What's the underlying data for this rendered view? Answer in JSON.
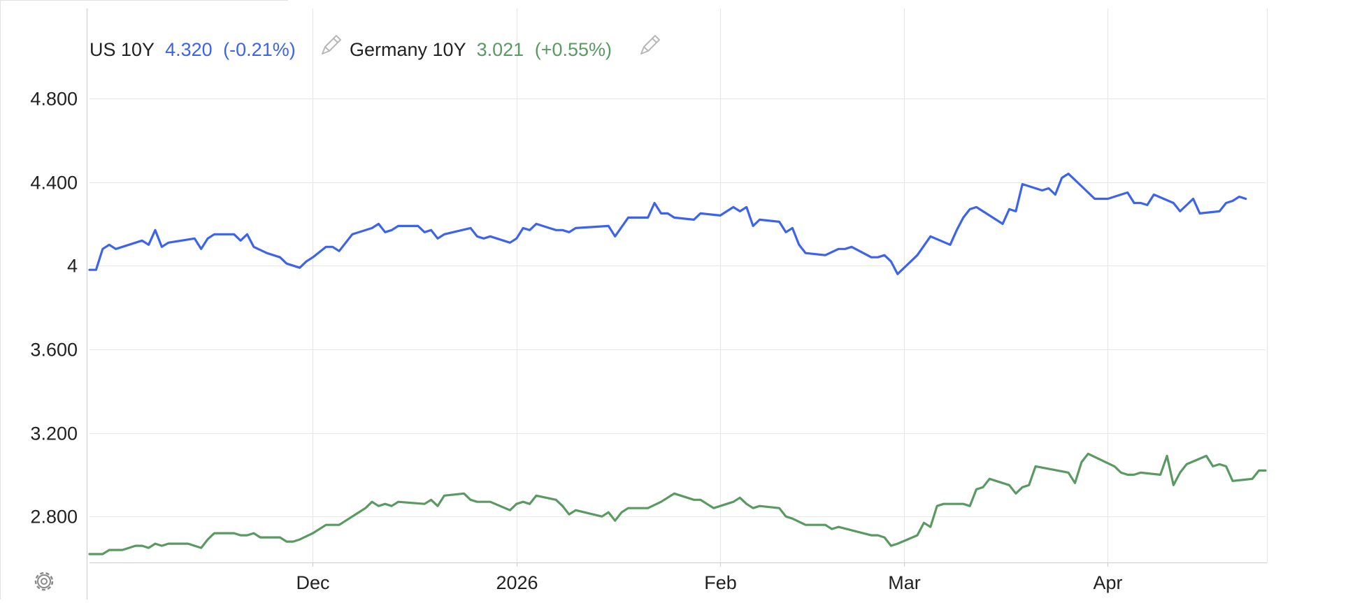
{
  "legend": [
    {
      "name": "US 10Y",
      "value": "4.320",
      "change": "(-0.21%)",
      "icon": "pencil-icon"
    },
    {
      "name": "Germany 10Y",
      "value": "3.021",
      "change": "(+0.55%)",
      "icon": "pencil-icon"
    }
  ],
  "controls": {
    "settings_icon": "gear-icon"
  },
  "colors": {
    "us": "#3d63ee",
    "germany": "#5a9a62",
    "grid": "#e6e6e6",
    "axis": "#cccccc",
    "text": "#222222",
    "icon": "#b8b8b8"
  },
  "chart_data": {
    "type": "line",
    "x_type": "date",
    "xlim": [
      "2025-10-28",
      "2026-04-25"
    ],
    "ylim": [
      2.58,
      4.95
    ],
    "y_ticks": [
      2.8,
      3.2,
      3.6,
      4.0,
      4.4,
      4.8
    ],
    "y_tick_labels": [
      "2.800",
      "3.200",
      "3.600",
      "4",
      "4.400",
      "4.800"
    ],
    "x_ticks": [
      {
        "date": "2025-12-01",
        "label": "Dec"
      },
      {
        "date": "2026-01-01",
        "label": "2026"
      },
      {
        "date": "2026-02-01",
        "label": "Feb"
      },
      {
        "date": "2026-03-01",
        "label": "Mar"
      },
      {
        "date": "2026-04-01",
        "label": "Apr"
      }
    ],
    "grid": true,
    "legend_position": "top-left",
    "series": [
      {
        "name": "US 10Y",
        "points": [
          [
            "2025-10-28",
            3.98
          ],
          [
            "2025-10-29",
            3.98
          ],
          [
            "2025-10-30",
            4.08
          ],
          [
            "2025-10-31",
            4.1
          ],
          [
            "2025-11-01",
            4.08
          ],
          [
            "2025-11-03",
            4.1
          ],
          [
            "2025-11-04",
            4.11
          ],
          [
            "2025-11-05",
            4.12
          ],
          [
            "2025-11-06",
            4.1
          ],
          [
            "2025-11-07",
            4.17
          ],
          [
            "2025-11-08",
            4.09
          ],
          [
            "2025-11-09",
            4.11
          ],
          [
            "2025-11-11",
            4.12
          ],
          [
            "2025-11-13",
            4.13
          ],
          [
            "2025-11-14",
            4.08
          ],
          [
            "2025-11-15",
            4.13
          ],
          [
            "2025-11-16",
            4.15
          ],
          [
            "2025-11-19",
            4.15
          ],
          [
            "2025-11-20",
            4.12
          ],
          [
            "2025-11-21",
            4.15
          ],
          [
            "2025-11-22",
            4.09
          ],
          [
            "2025-11-24",
            4.06
          ],
          [
            "2025-11-26",
            4.04
          ],
          [
            "2025-11-27",
            4.01
          ],
          [
            "2025-11-28",
            4.0
          ],
          [
            "2025-11-29",
            3.99
          ],
          [
            "2025-11-30",
            4.02
          ],
          [
            "2025-12-01",
            4.04
          ],
          [
            "2025-12-03",
            4.09
          ],
          [
            "2025-12-04",
            4.09
          ],
          [
            "2025-12-05",
            4.07
          ],
          [
            "2025-12-07",
            4.15
          ],
          [
            "2025-12-10",
            4.18
          ],
          [
            "2025-12-11",
            4.2
          ],
          [
            "2025-12-12",
            4.16
          ],
          [
            "2025-12-13",
            4.17
          ],
          [
            "2025-12-14",
            4.19
          ],
          [
            "2025-12-17",
            4.19
          ],
          [
            "2025-12-18",
            4.16
          ],
          [
            "2025-12-19",
            4.17
          ],
          [
            "2025-12-20",
            4.13
          ],
          [
            "2025-12-21",
            4.15
          ],
          [
            "2025-12-25",
            4.18
          ],
          [
            "2025-12-26",
            4.14
          ],
          [
            "2025-12-27",
            4.13
          ],
          [
            "2025-12-28",
            4.14
          ],
          [
            "2025-12-31",
            4.11
          ],
          [
            "2026-01-01",
            4.13
          ],
          [
            "2026-01-02",
            4.18
          ],
          [
            "2026-01-03",
            4.17
          ],
          [
            "2026-01-04",
            4.2
          ],
          [
            "2026-01-06",
            4.18
          ],
          [
            "2026-01-07",
            4.17
          ],
          [
            "2026-01-08",
            4.17
          ],
          [
            "2026-01-09",
            4.16
          ],
          [
            "2026-01-10",
            4.18
          ],
          [
            "2026-01-15",
            4.19
          ],
          [
            "2026-01-16",
            4.14
          ],
          [
            "2026-01-18",
            4.23
          ],
          [
            "2026-01-21",
            4.23
          ],
          [
            "2026-01-22",
            4.3
          ],
          [
            "2026-01-23",
            4.25
          ],
          [
            "2026-01-24",
            4.25
          ],
          [
            "2026-01-25",
            4.23
          ],
          [
            "2026-01-28",
            4.22
          ],
          [
            "2026-01-29",
            4.25
          ],
          [
            "2026-02-01",
            4.24
          ],
          [
            "2026-02-02",
            4.26
          ],
          [
            "2026-02-03",
            4.28
          ],
          [
            "2026-02-04",
            4.26
          ],
          [
            "2026-02-05",
            4.28
          ],
          [
            "2026-02-06",
            4.19
          ],
          [
            "2026-02-07",
            4.22
          ],
          [
            "2026-02-10",
            4.21
          ],
          [
            "2026-02-11",
            4.16
          ],
          [
            "2026-02-12",
            4.18
          ],
          [
            "2026-02-13",
            4.1
          ],
          [
            "2026-02-14",
            4.06
          ],
          [
            "2026-02-17",
            4.05
          ],
          [
            "2026-02-19",
            4.08
          ],
          [
            "2026-02-20",
            4.08
          ],
          [
            "2026-02-21",
            4.09
          ],
          [
            "2026-02-24",
            4.04
          ],
          [
            "2026-02-25",
            4.04
          ],
          [
            "2026-02-26",
            4.05
          ],
          [
            "2026-02-27",
            4.02
          ],
          [
            "2026-02-28",
            3.96
          ],
          [
            "2026-03-03",
            4.05
          ],
          [
            "2026-03-05",
            4.14
          ],
          [
            "2026-03-08",
            4.1
          ],
          [
            "2026-03-09",
            4.17
          ],
          [
            "2026-03-10",
            4.23
          ],
          [
            "2026-03-11",
            4.27
          ],
          [
            "2026-03-12",
            4.28
          ],
          [
            "2026-03-16",
            4.2
          ],
          [
            "2026-03-17",
            4.27
          ],
          [
            "2026-03-18",
            4.26
          ],
          [
            "2026-03-19",
            4.39
          ],
          [
            "2026-03-21",
            4.37
          ],
          [
            "2026-03-22",
            4.36
          ],
          [
            "2026-03-23",
            4.37
          ],
          [
            "2026-03-24",
            4.34
          ],
          [
            "2026-03-25",
            4.42
          ],
          [
            "2026-03-26",
            4.44
          ],
          [
            "2026-03-28",
            4.38
          ],
          [
            "2026-03-29",
            4.35
          ],
          [
            "2026-03-30",
            4.32
          ],
          [
            "2026-04-01",
            4.32
          ],
          [
            "2026-04-02",
            4.33
          ],
          [
            "2026-04-03",
            4.34
          ],
          [
            "2026-04-04",
            4.35
          ],
          [
            "2026-04-05",
            4.3
          ],
          [
            "2026-04-06",
            4.3
          ],
          [
            "2026-04-07",
            4.29
          ],
          [
            "2026-04-08",
            4.34
          ],
          [
            "2026-04-11",
            4.3
          ],
          [
            "2026-04-12",
            4.26
          ],
          [
            "2026-04-14",
            4.32
          ],
          [
            "2026-04-15",
            4.25
          ],
          [
            "2026-04-18",
            4.26
          ],
          [
            "2026-04-19",
            4.3
          ],
          [
            "2026-04-20",
            4.31
          ],
          [
            "2026-04-21",
            4.33
          ],
          [
            "2026-04-22",
            4.32
          ]
        ]
      },
      {
        "name": "Germany 10Y",
        "points": [
          [
            "2025-10-28",
            2.62
          ],
          [
            "2025-10-29",
            2.62
          ],
          [
            "2025-10-30",
            2.62
          ],
          [
            "2025-10-31",
            2.64
          ],
          [
            "2025-11-01",
            2.64
          ],
          [
            "2025-11-02",
            2.64
          ],
          [
            "2025-11-04",
            2.66
          ],
          [
            "2025-11-05",
            2.66
          ],
          [
            "2025-11-06",
            2.65
          ],
          [
            "2025-11-07",
            2.67
          ],
          [
            "2025-11-08",
            2.66
          ],
          [
            "2025-11-09",
            2.67
          ],
          [
            "2025-11-12",
            2.67
          ],
          [
            "2025-11-13",
            2.66
          ],
          [
            "2025-11-14",
            2.65
          ],
          [
            "2025-11-15",
            2.69
          ],
          [
            "2025-11-16",
            2.72
          ],
          [
            "2025-11-19",
            2.72
          ],
          [
            "2025-11-20",
            2.71
          ],
          [
            "2025-11-21",
            2.71
          ],
          [
            "2025-11-22",
            2.72
          ],
          [
            "2025-11-23",
            2.7
          ],
          [
            "2025-11-26",
            2.7
          ],
          [
            "2025-11-27",
            2.68
          ],
          [
            "2025-11-28",
            2.68
          ],
          [
            "2025-11-29",
            2.69
          ],
          [
            "2025-12-01",
            2.72
          ],
          [
            "2025-12-03",
            2.76
          ],
          [
            "2025-12-05",
            2.76
          ],
          [
            "2025-12-07",
            2.8
          ],
          [
            "2025-12-09",
            2.84
          ],
          [
            "2025-12-10",
            2.87
          ],
          [
            "2025-12-11",
            2.85
          ],
          [
            "2025-12-12",
            2.86
          ],
          [
            "2025-12-13",
            2.85
          ],
          [
            "2025-12-14",
            2.87
          ],
          [
            "2025-12-18",
            2.86
          ],
          [
            "2025-12-19",
            2.88
          ],
          [
            "2025-12-20",
            2.85
          ],
          [
            "2025-12-21",
            2.9
          ],
          [
            "2025-12-24",
            2.91
          ],
          [
            "2025-12-25",
            2.88
          ],
          [
            "2025-12-26",
            2.87
          ],
          [
            "2025-12-28",
            2.87
          ],
          [
            "2025-12-31",
            2.83
          ],
          [
            "2026-01-01",
            2.86
          ],
          [
            "2026-01-02",
            2.87
          ],
          [
            "2026-01-03",
            2.86
          ],
          [
            "2026-01-04",
            2.9
          ],
          [
            "2026-01-07",
            2.88
          ],
          [
            "2026-01-08",
            2.85
          ],
          [
            "2026-01-09",
            2.81
          ],
          [
            "2026-01-10",
            2.83
          ],
          [
            "2026-01-14",
            2.8
          ],
          [
            "2026-01-15",
            2.82
          ],
          [
            "2026-01-16",
            2.78
          ],
          [
            "2026-01-17",
            2.82
          ],
          [
            "2026-01-18",
            2.84
          ],
          [
            "2026-01-21",
            2.84
          ],
          [
            "2026-01-23",
            2.87
          ],
          [
            "2026-01-24",
            2.89
          ],
          [
            "2026-01-25",
            2.91
          ],
          [
            "2026-01-28",
            2.88
          ],
          [
            "2026-01-29",
            2.88
          ],
          [
            "2026-01-31",
            2.84
          ],
          [
            "2026-02-01",
            2.85
          ],
          [
            "2026-02-03",
            2.87
          ],
          [
            "2026-02-04",
            2.89
          ],
          [
            "2026-02-05",
            2.86
          ],
          [
            "2026-02-06",
            2.84
          ],
          [
            "2026-02-07",
            2.85
          ],
          [
            "2026-02-10",
            2.84
          ],
          [
            "2026-02-11",
            2.8
          ],
          [
            "2026-02-12",
            2.79
          ],
          [
            "2026-02-14",
            2.76
          ],
          [
            "2026-02-17",
            2.76
          ],
          [
            "2026-02-18",
            2.74
          ],
          [
            "2026-02-19",
            2.75
          ],
          [
            "2026-02-24",
            2.71
          ],
          [
            "2026-02-25",
            2.71
          ],
          [
            "2026-02-26",
            2.7
          ],
          [
            "2026-02-27",
            2.66
          ],
          [
            "2026-02-28",
            2.67
          ],
          [
            "2026-03-03",
            2.71
          ],
          [
            "2026-03-04",
            2.77
          ],
          [
            "2026-03-05",
            2.75
          ],
          [
            "2026-03-06",
            2.85
          ],
          [
            "2026-03-07",
            2.86
          ],
          [
            "2026-03-10",
            2.86
          ],
          [
            "2026-03-11",
            2.85
          ],
          [
            "2026-03-12",
            2.93
          ],
          [
            "2026-03-13",
            2.94
          ],
          [
            "2026-03-14",
            2.98
          ],
          [
            "2026-03-17",
            2.95
          ],
          [
            "2026-03-18",
            2.91
          ],
          [
            "2026-03-19",
            2.94
          ],
          [
            "2026-03-20",
            2.95
          ],
          [
            "2026-03-21",
            3.04
          ],
          [
            "2026-03-26",
            3.01
          ],
          [
            "2026-03-27",
            2.96
          ],
          [
            "2026-03-28",
            3.06
          ],
          [
            "2026-03-29",
            3.1
          ],
          [
            "2026-04-02",
            3.04
          ],
          [
            "2026-04-03",
            3.01
          ],
          [
            "2026-04-04",
            3.0
          ],
          [
            "2026-04-05",
            3.0
          ],
          [
            "2026-04-06",
            3.01
          ],
          [
            "2026-04-09",
            3.0
          ],
          [
            "2026-04-10",
            3.09
          ],
          [
            "2026-04-11",
            2.95
          ],
          [
            "2026-04-12",
            3.01
          ],
          [
            "2026-04-13",
            3.05
          ],
          [
            "2026-04-16",
            3.09
          ],
          [
            "2026-04-17",
            3.04
          ],
          [
            "2026-04-18",
            3.05
          ],
          [
            "2026-04-19",
            3.04
          ],
          [
            "2026-04-20",
            2.97
          ],
          [
            "2026-04-23",
            2.98
          ],
          [
            "2026-04-24",
            3.02
          ],
          [
            "2026-04-25",
            3.02
          ]
        ]
      }
    ]
  }
}
